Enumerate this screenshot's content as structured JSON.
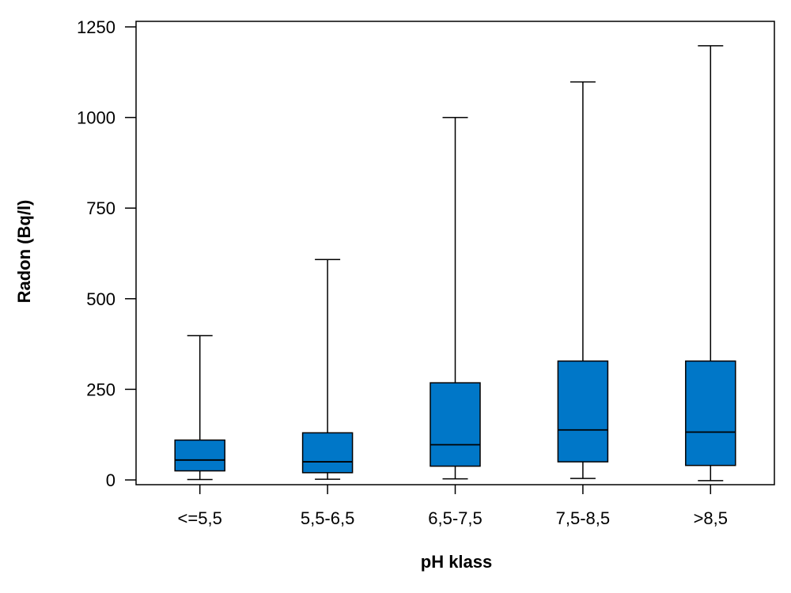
{
  "chart_data": {
    "type": "box",
    "title": "",
    "xlabel": "pH klass",
    "ylabel": "Radon (Bq/l)",
    "ylim": [
      -10,
      1260
    ],
    "yticks": [
      0,
      250,
      500,
      750,
      1000,
      1250
    ],
    "ytick_labels": [
      "0",
      "250",
      "500",
      "750",
      "1000",
      "1250"
    ],
    "categories": [
      "<=5,5",
      "5,5-6,5",
      "6,5-7,5",
      "7,5-8,5",
      ">8,5"
    ],
    "boxes": [
      {
        "category": "<=5,5",
        "whisker_low": 1,
        "q1": 25,
        "median": 55,
        "q3": 110,
        "whisker_high": 398
      },
      {
        "category": "5,5-6,5",
        "whisker_low": 2,
        "q1": 20,
        "median": 50,
        "q3": 130,
        "whisker_high": 608
      },
      {
        "category": "6,5-7,5",
        "whisker_low": 3,
        "q1": 38,
        "median": 97,
        "q3": 268,
        "whisker_high": 1000
      },
      {
        "category": "7,5-8,5",
        "whisker_low": 4,
        "q1": 50,
        "median": 138,
        "q3": 328,
        "whisker_high": 1098
      },
      {
        "category": ">8,5",
        "whisker_low": -2,
        "q1": 40,
        "median": 132,
        "q3": 328,
        "whisker_high": 1198
      }
    ],
    "box_color": "#0077c8",
    "line_color": "#000000",
    "grid": false
  }
}
